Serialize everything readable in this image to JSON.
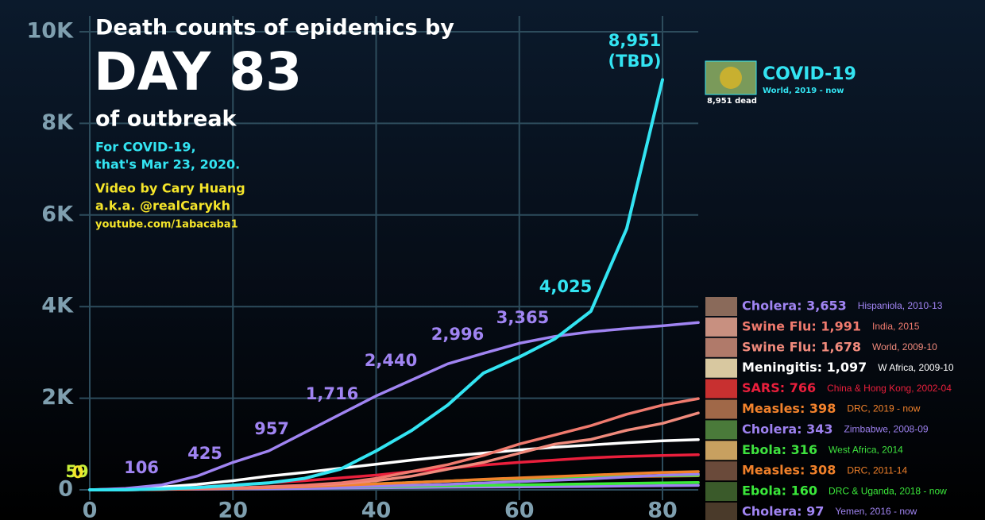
{
  "chart_data": {
    "type": "line",
    "title": "Death counts of epidemics by",
    "headline": "DAY 83",
    "subtitle": "of outbreak",
    "notes": [
      "For COVID-19,",
      "that's Mar 23, 2020."
    ],
    "credits": [
      "Video by Cary Huang",
      "a.k.a. @realCarykh",
      "youtube.com/1abacaba1"
    ],
    "x": [
      0,
      5,
      10,
      15,
      20,
      25,
      30,
      35,
      40,
      45,
      50,
      55,
      60,
      65,
      70,
      75,
      80,
      85
    ],
    "xlim": [
      0,
      85
    ],
    "xticks": [
      0,
      20,
      40,
      60,
      80
    ],
    "ylim": [
      0,
      10000
    ],
    "yticks": [
      0,
      {
        "value": 2000,
        "label": "2K"
      },
      {
        "value": 4000,
        "label": "4K"
      },
      {
        "value": 6000,
        "label": "6K"
      },
      {
        "value": 8000,
        "label": "8K"
      },
      {
        "value": 10000,
        "label": "10K"
      }
    ],
    "grid": true,
    "series": [
      {
        "name": "COVID-19",
        "place": "World, 2019 - now",
        "caption": "8,951 dead",
        "color": "#33e4f2",
        "values": [
          0,
          0,
          20,
          50,
          100,
          150,
          250,
          450,
          850,
          1300,
          1850,
          2550,
          2900,
          3300,
          3900,
          5700,
          8951,
          null
        ]
      },
      {
        "name": "Cholera: 3,653",
        "place": "Hispaniola, 2010-13",
        "color": "#a084f2",
        "values": [
          0,
          30,
          106,
          300,
          600,
          850,
          1250,
          1650,
          2050,
          2400,
          2750,
          2980,
          3200,
          3350,
          3450,
          3520,
          3580,
          3653
        ]
      },
      {
        "name": "Swine Flu: 1,991",
        "place": "India, 2015",
        "color": "#f07a6e",
        "values": [
          0,
          0,
          10,
          20,
          40,
          70,
          100,
          150,
          250,
          400,
          550,
          750,
          1000,
          1200,
          1400,
          1650,
          1850,
          1991
        ]
      },
      {
        "name": "Swine Flu: 1,678",
        "place": "World, 2009-10",
        "color": "#f08a7c",
        "values": [
          0,
          0,
          10,
          20,
          40,
          60,
          90,
          130,
          200,
          300,
          450,
          600,
          800,
          1000,
          1100,
          1300,
          1450,
          1678
        ]
      },
      {
        "name": "Meningitis: 1,097",
        "place": "W Africa, 2009-10",
        "color": "#ffffff",
        "values": [
          0,
          20,
          60,
          120,
          200,
          300,
          380,
          470,
          560,
          650,
          730,
          800,
          870,
          930,
          980,
          1030,
          1070,
          1097
        ]
      },
      {
        "name": "SARS: 766",
        "place": "China & Hong Kong, 2002-04",
        "color": "#ea1f3c",
        "values": [
          0,
          10,
          30,
          60,
          100,
          150,
          200,
          260,
          320,
          400,
          470,
          540,
          600,
          650,
          700,
          730,
          750,
          766
        ]
      },
      {
        "name": "Measles: 398",
        "place": "DRC, 2019 - now",
        "color": "#f2822c",
        "values": [
          0,
          5,
          10,
          20,
          30,
          50,
          70,
          100,
          130,
          160,
          190,
          230,
          260,
          290,
          320,
          350,
          380,
          398
        ]
      },
      {
        "name": "Cholera: 343",
        "place": "Zimbabwe, 2008-09",
        "color": "#9c80ee",
        "values": [
          0,
          5,
          10,
          15,
          20,
          30,
          40,
          60,
          80,
          100,
          120,
          150,
          180,
          210,
          240,
          280,
          320,
          343
        ]
      },
      {
        "name": "Ebola: 316",
        "place": "West Africa, 2014",
        "color": "#3ee23e",
        "values": [
          0,
          10,
          20,
          30,
          40,
          60,
          80,
          100,
          130,
          160,
          190,
          220,
          250,
          270,
          290,
          300,
          310,
          316
        ]
      },
      {
        "name": "Measles: 308",
        "place": "DRC, 2011-14",
        "color": "#f0802a",
        "values": [
          0,
          5,
          10,
          20,
          40,
          60,
          80,
          100,
          130,
          160,
          190,
          220,
          240,
          260,
          280,
          290,
          300,
          308
        ]
      },
      {
        "name": "Ebola: 160",
        "place": "DRC & Uganda, 2018 - now",
        "color": "#3ae83a",
        "values": [
          0,
          5,
          10,
          20,
          30,
          40,
          50,
          60,
          70,
          80,
          90,
          100,
          110,
          120,
          130,
          140,
          150,
          160
        ]
      },
      {
        "name": "Cholera: 97",
        "place": "Yemen, 2016 - now",
        "color": "#a084f2",
        "values": [
          0,
          5,
          10,
          15,
          20,
          25,
          30,
          40,
          45,
          50,
          55,
          60,
          65,
          70,
          75,
          85,
          92,
          97
        ]
      }
    ],
    "annotations": [
      {
        "text": "59",
        "color": "#c8f03a"
      },
      {
        "text": "0",
        "color": "#f5e52a"
      },
      {
        "text": "106",
        "color": "#a084f2"
      },
      {
        "text": "425",
        "color": "#a084f2"
      },
      {
        "text": "957",
        "color": "#a084f2"
      },
      {
        "text": "1,716",
        "color": "#a084f2"
      },
      {
        "text": "2,440",
        "color": "#a084f2"
      },
      {
        "text": "2,996",
        "color": "#a084f2"
      },
      {
        "text": "3,365",
        "color": "#a084f2"
      },
      {
        "text": "4,025",
        "color": "#33e4f2"
      },
      {
        "text": "8,951",
        "color": "#33e4f2"
      },
      {
        "text": "(TBD)",
        "color": "#33e4f2"
      }
    ]
  }
}
